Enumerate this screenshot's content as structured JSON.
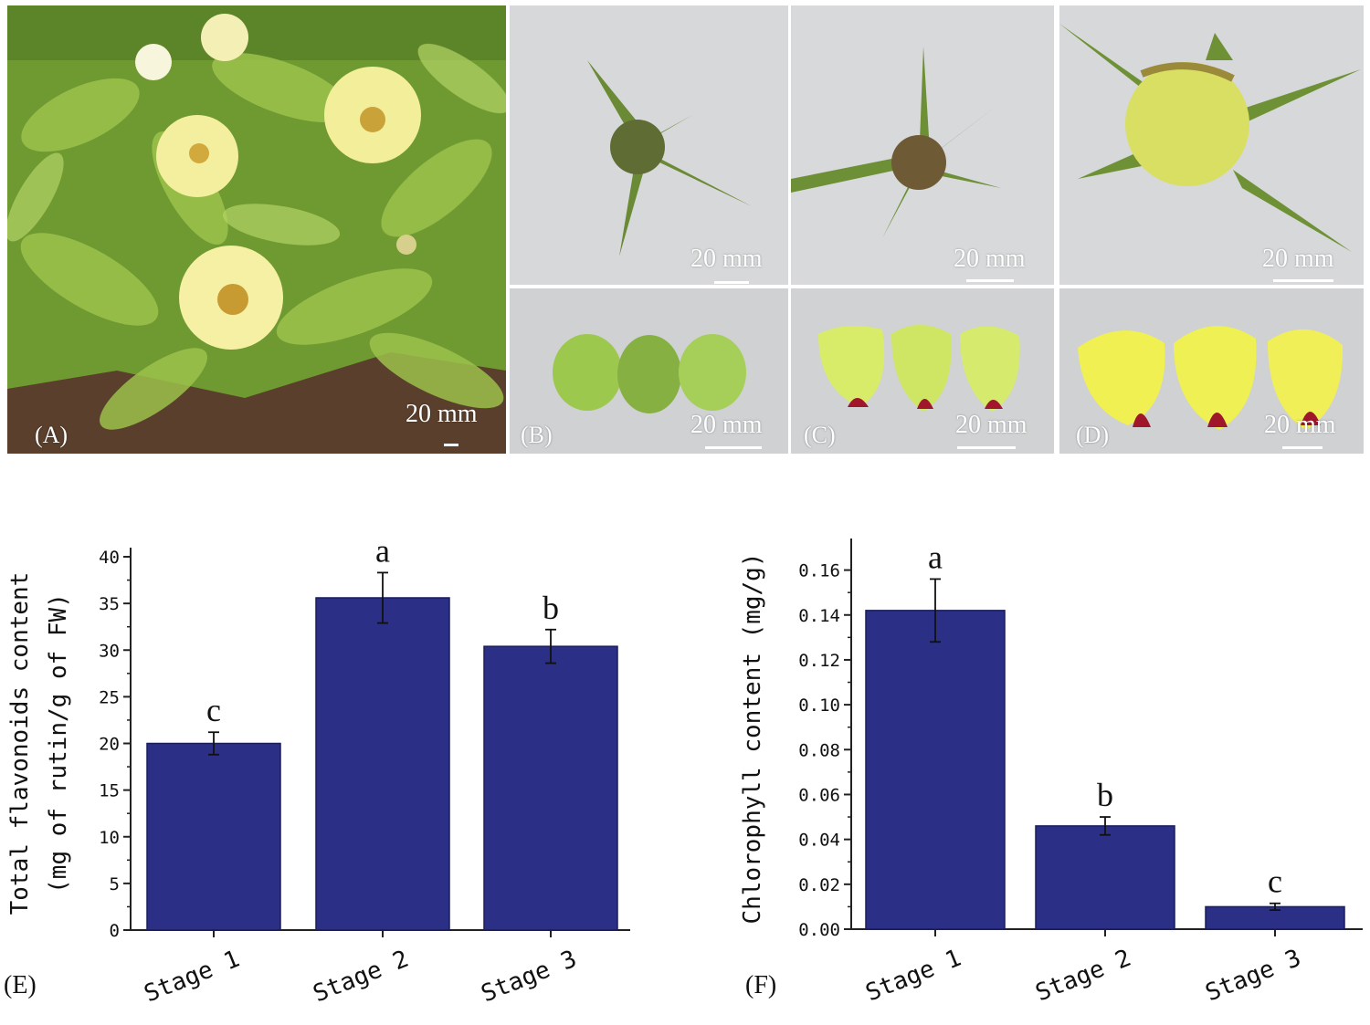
{
  "panels": {
    "A": {
      "label": "(A)",
      "scale": "20 mm"
    },
    "B": {
      "label": "(B)",
      "scale_top": "20 mm",
      "scale_bottom": "20 mm"
    },
    "C": {
      "label": "(C)",
      "scale_top": "20 mm",
      "scale_bottom": "20 mm"
    },
    "D": {
      "label": "(D)",
      "scale_top": "20 mm",
      "scale_bottom": "20 mm"
    },
    "E": {
      "label": "(E)"
    },
    "F": {
      "label": "(F)"
    }
  },
  "colors": {
    "bar": "#2b2f86",
    "flower": "#f3ee9a",
    "leaf": "#7fa83a",
    "petal_spot": "#a0162a"
  },
  "chart_data": [
    {
      "type": "bar",
      "panel": "E",
      "categories": [
        "Stage 1",
        "Stage 2",
        "Stage 3"
      ],
      "values": [
        20.0,
        35.6,
        30.4
      ],
      "errors": [
        1.2,
        2.7,
        1.8
      ],
      "significance": [
        "c",
        "a",
        "b"
      ],
      "ylabel_line1": "Total flavonoids content",
      "ylabel_line2": "(mg of rutin/g of FW)",
      "ylim": [
        0,
        40
      ],
      "yticks": [
        "0",
        "5",
        "10",
        "15",
        "20",
        "25",
        "30",
        "35",
        "40"
      ]
    },
    {
      "type": "bar",
      "panel": "F",
      "categories": [
        "Stage 1",
        "Stage 2",
        "Stage 3"
      ],
      "values": [
        0.142,
        0.046,
        0.01
      ],
      "errors": [
        0.014,
        0.004,
        0.0015
      ],
      "significance": [
        "a",
        "b",
        "c"
      ],
      "ylabel_line1": "Chlorophyll content (mg/g)",
      "ylim": [
        0,
        0.17
      ],
      "yticks": [
        "0.00",
        "0.02",
        "0.04",
        "0.06",
        "0.08",
        "0.10",
        "0.12",
        "0.14",
        "0.16"
      ],
      "ytick_values": [
        0,
        0.02,
        0.04,
        0.06,
        0.08,
        0.1,
        0.12,
        0.14,
        0.16
      ]
    }
  ]
}
